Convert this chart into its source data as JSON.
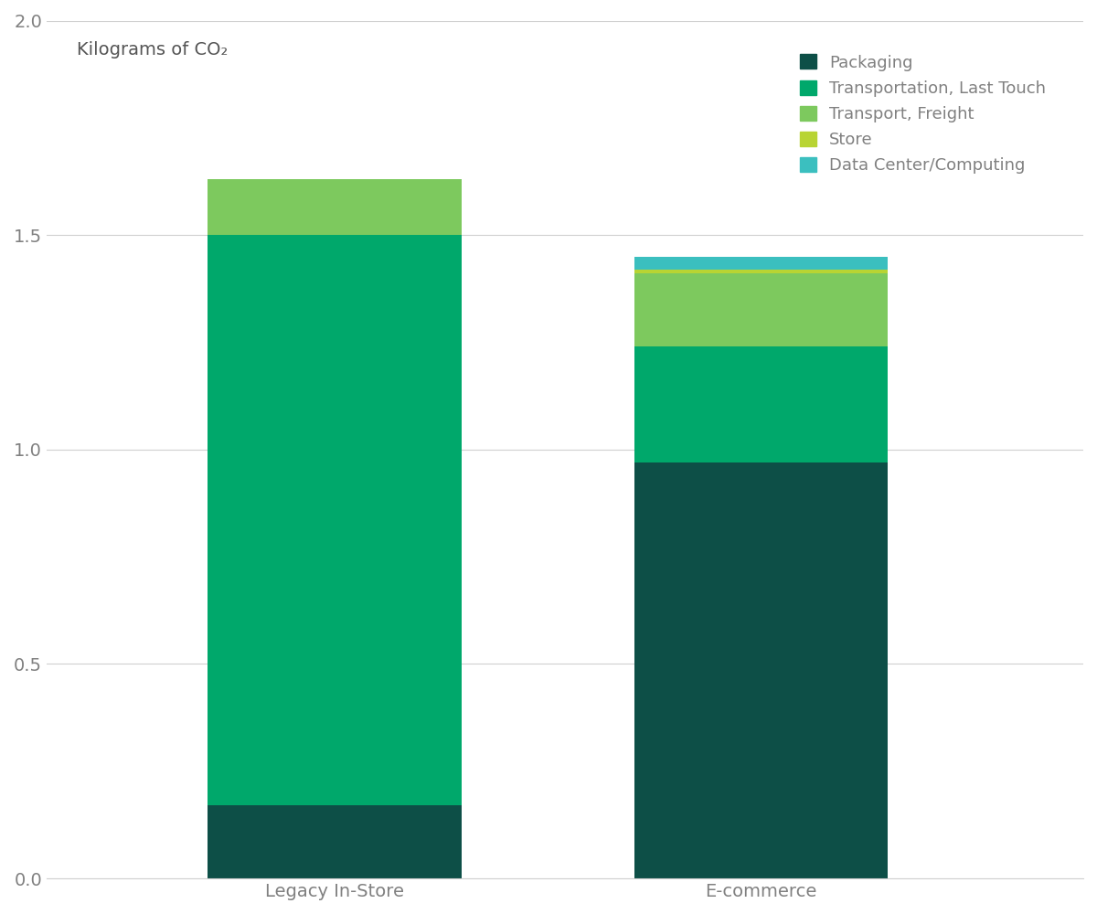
{
  "categories": [
    "Legacy In-Store",
    "E-commerce"
  ],
  "segments": [
    {
      "label": "Packaging",
      "color": "#0d4f47",
      "values": [
        0.17,
        0.97
      ]
    },
    {
      "label": "Transportation, Last Touch",
      "color": "#00a86b",
      "values": [
        1.33,
        0.27
      ]
    },
    {
      "label": "Transport, Freight",
      "color": "#7dc95e",
      "values": [
        0.13,
        0.17
      ]
    },
    {
      "label": "Store",
      "color": "#b8d433",
      "values": [
        0.0,
        0.01
      ]
    },
    {
      "label": "Data Center/Computing",
      "color": "#3bbfbf",
      "values": [
        0.0,
        0.03
      ]
    }
  ],
  "ylabel": "Kilograms of CO₂",
  "ylim": [
    0.0,
    2.0
  ],
  "yticks": [
    0.0,
    0.5,
    1.0,
    1.5,
    2.0
  ],
  "bar_width": 0.22,
  "background_color": "#ffffff",
  "grid_color": "#d0d0d0",
  "text_color": "#808080",
  "legend_fontsize": 13,
  "axis_fontsize": 14,
  "tick_fontsize": 14,
  "bar_positions": [
    0.35,
    0.72
  ]
}
